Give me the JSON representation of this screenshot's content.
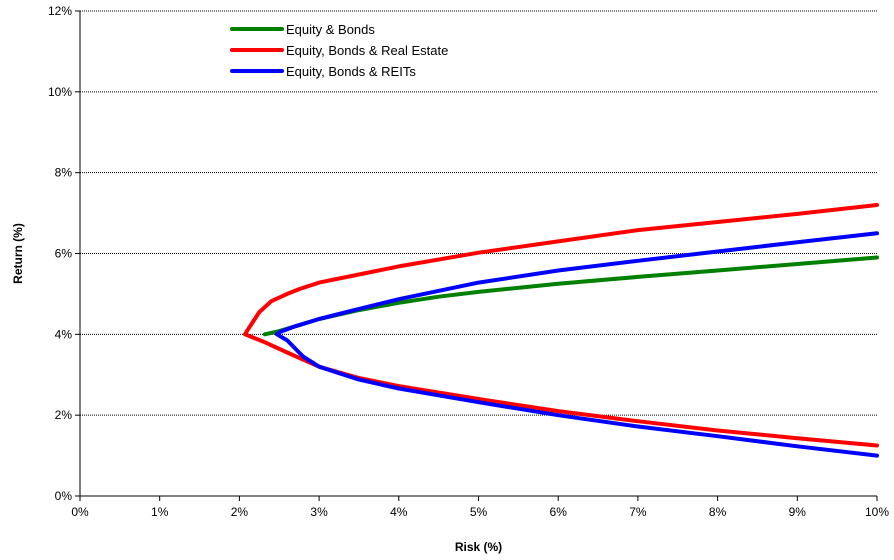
{
  "chart_data": {
    "type": "line",
    "title": "",
    "xlabel": "Risk (%)",
    "ylabel": "Return (%)",
    "xlim": [
      0,
      10
    ],
    "ylim": [
      0,
      12
    ],
    "x_ticks": [
      0,
      1,
      2,
      3,
      4,
      5,
      6,
      7,
      8,
      9,
      10
    ],
    "x_tick_labels": [
      "0%",
      "1%",
      "2%",
      "3%",
      "4%",
      "5%",
      "6%",
      "7%",
      "8%",
      "9%",
      "10%"
    ],
    "y_ticks": [
      0,
      2,
      4,
      6,
      8,
      10,
      12
    ],
    "y_tick_labels": [
      "0%",
      "2%",
      "4%",
      "6%",
      "8%",
      "10%",
      "12%"
    ],
    "grid": "horizontal dotted",
    "legend_position": "top-left",
    "series": [
      {
        "name": "Equity & Bonds",
        "color": "#008000",
        "points": [
          [
            10.0,
            5.9
          ],
          [
            9.0,
            5.74
          ],
          [
            8.0,
            5.58
          ],
          [
            7.0,
            5.42
          ],
          [
            6.0,
            5.25
          ],
          [
            5.0,
            5.05
          ],
          [
            4.5,
            4.93
          ],
          [
            4.0,
            4.78
          ],
          [
            3.5,
            4.6
          ],
          [
            3.0,
            4.38
          ],
          [
            2.7,
            4.2
          ],
          [
            2.5,
            4.08
          ],
          [
            2.32,
            4.0
          ]
        ]
      },
      {
        "name": "Equity, Bonds & Real Estate",
        "color": "#ff0000",
        "points": [
          [
            10.0,
            7.2
          ],
          [
            9.0,
            6.98
          ],
          [
            8.0,
            6.78
          ],
          [
            7.0,
            6.58
          ],
          [
            6.0,
            6.3
          ],
          [
            5.0,
            6.02
          ],
          [
            4.0,
            5.68
          ],
          [
            3.5,
            5.48
          ],
          [
            3.0,
            5.28
          ],
          [
            2.75,
            5.12
          ],
          [
            2.6,
            5.0
          ],
          [
            2.4,
            4.82
          ],
          [
            2.25,
            4.55
          ],
          [
            2.1,
            4.1
          ],
          [
            2.07,
            4.0
          ],
          [
            2.3,
            3.82
          ],
          [
            2.6,
            3.55
          ],
          [
            3.0,
            3.2
          ],
          [
            3.5,
            2.92
          ],
          [
            4.0,
            2.72
          ],
          [
            5.0,
            2.4
          ],
          [
            6.0,
            2.1
          ],
          [
            7.0,
            1.85
          ],
          [
            8.0,
            1.62
          ],
          [
            9.0,
            1.43
          ],
          [
            10.0,
            1.25
          ]
        ]
      },
      {
        "name": "Equity, Bonds & REITs",
        "color": "#0000ff",
        "points": [
          [
            10.0,
            6.5
          ],
          [
            9.0,
            6.28
          ],
          [
            8.0,
            6.05
          ],
          [
            7.0,
            5.82
          ],
          [
            6.0,
            5.58
          ],
          [
            5.0,
            5.28
          ],
          [
            4.0,
            4.87
          ],
          [
            3.5,
            4.63
          ],
          [
            3.0,
            4.38
          ],
          [
            2.7,
            4.2
          ],
          [
            2.5,
            4.05
          ],
          [
            2.47,
            4.0
          ],
          [
            2.6,
            3.85
          ],
          [
            2.8,
            3.45
          ],
          [
            3.0,
            3.2
          ],
          [
            3.5,
            2.88
          ],
          [
            4.0,
            2.66
          ],
          [
            5.0,
            2.32
          ],
          [
            6.0,
            2.0
          ],
          [
            7.0,
            1.72
          ],
          [
            8.0,
            1.48
          ],
          [
            9.0,
            1.23
          ],
          [
            10.0,
            1.0
          ]
        ]
      }
    ]
  }
}
